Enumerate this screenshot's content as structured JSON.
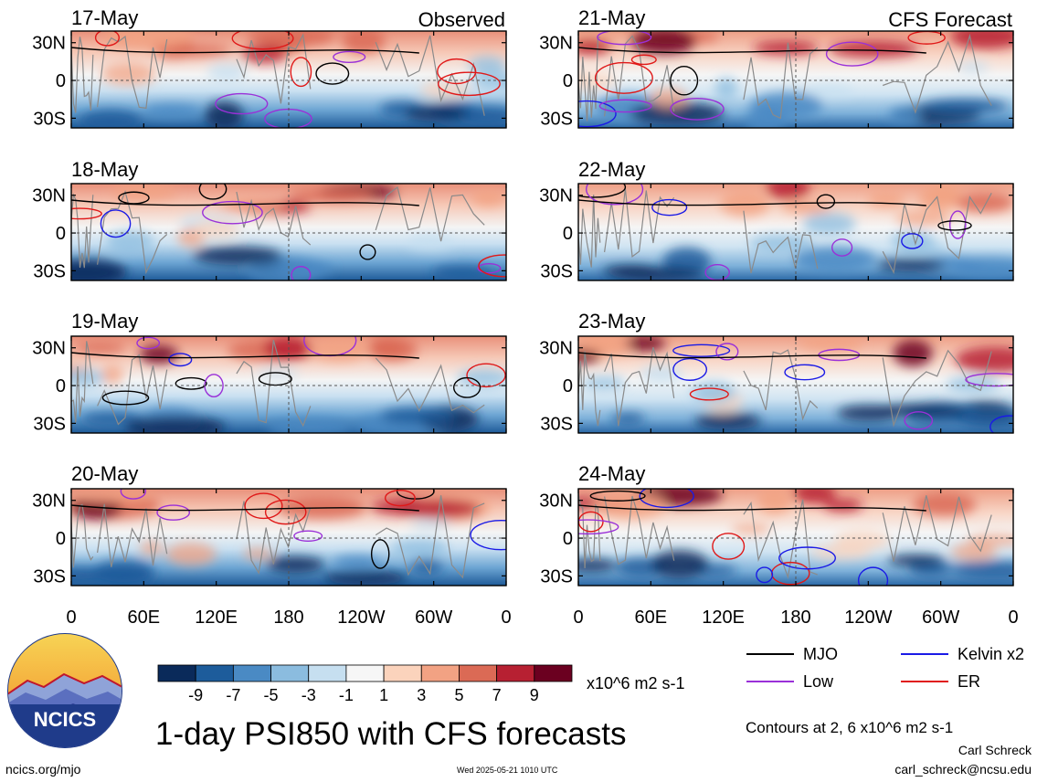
{
  "panels_left": [
    {
      "date": "17-May",
      "label": "Observed"
    },
    {
      "date": "18-May",
      "label": ""
    },
    {
      "date": "19-May",
      "label": ""
    },
    {
      "date": "20-May",
      "label": ""
    }
  ],
  "panels_right": [
    {
      "date": "21-May",
      "label": "CFS Forecast"
    },
    {
      "date": "22-May",
      "label": ""
    },
    {
      "date": "23-May",
      "label": ""
    },
    {
      "date": "24-May",
      "label": ""
    }
  ],
  "lat_labels": [
    "30N",
    "0",
    "30S"
  ],
  "lon_labels": [
    "0",
    "60E",
    "120E",
    "180",
    "120W",
    "60W",
    "0"
  ],
  "colorbar": {
    "colors": [
      "#0a2a5a",
      "#1d5c9b",
      "#4a8ac4",
      "#8bbcdf",
      "#c6dff0",
      "#f6f6f6",
      "#fbd3bc",
      "#f2a283",
      "#db6a55",
      "#b72032",
      "#6b0020"
    ],
    "tick_labels": [
      "-9",
      "-7",
      "-5",
      "-3",
      "-1",
      "1",
      "3",
      "5",
      "7",
      "9"
    ],
    "units": "x10^6 m2 s-1"
  },
  "legend": [
    {
      "label": "MJO",
      "color": "#000000"
    },
    {
      "label": "Kelvin x2",
      "color": "#1a1ae6"
    },
    {
      "label": "Low",
      "color": "#9a30d8"
    },
    {
      "label": "ER",
      "color": "#e01818"
    }
  ],
  "logo_text": "NCICS",
  "title": "1-day PSI850 with CFS forecasts",
  "contours_note": "Contours at 2, 6 x10^6 m2 s-1",
  "author": "Carl Schreck",
  "email": "carl_schreck@ncsu.edu",
  "website": "ncics.org/mjo",
  "timestamp": "Wed 2025-05-21 1010 UTC"
}
